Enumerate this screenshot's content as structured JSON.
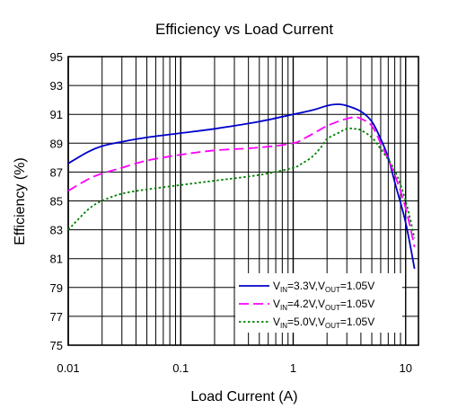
{
  "chart_data": {
    "type": "line",
    "title": "Efficiency vs Load Current",
    "xlabel": "Load Current (A)",
    "ylabel": "Efficiency (%)",
    "x_scale": "log",
    "xlim": [
      0.01,
      13
    ],
    "ylim": [
      75,
      95
    ],
    "x_ticks": [
      "0.01",
      "0.1",
      "1",
      "10"
    ],
    "y_ticks": [
      "75",
      "77",
      "79",
      "81",
      "83",
      "85",
      "87",
      "89",
      "91",
      "93",
      "95"
    ],
    "grid": true,
    "legend_position": "bottom-right",
    "series": [
      {
        "name": "VIN=3.3V,VOUT=1.05V",
        "color": "#0000cc",
        "dash": "solid",
        "legend": {
          "v1": "V",
          "sub1": "IN",
          "val1": "=3.3V,",
          "v2": "V",
          "sub2": "OUT",
          "val2": "=1.05V"
        },
        "x": [
          0.01,
          0.015,
          0.02,
          0.03,
          0.05,
          0.1,
          0.2,
          0.5,
          1.0,
          1.5,
          2.0,
          2.5,
          3.0,
          4.0,
          5.0,
          6.0,
          7.0,
          8.0,
          10.0,
          12.0
        ],
        "y": [
          87.6,
          88.4,
          88.8,
          89.1,
          89.4,
          89.7,
          90.0,
          90.5,
          91.0,
          91.3,
          91.6,
          91.7,
          91.6,
          91.2,
          90.5,
          89.3,
          88.0,
          86.3,
          83.5,
          80.3
        ]
      },
      {
        "name": "VIN=4.2V,VOUT=1.05V",
        "color": "#ff00ff",
        "dash": "dashed",
        "legend": {
          "v1": "V",
          "sub1": "IN",
          "val1": "=4.2V,",
          "v2": "V",
          "sub2": "OUT",
          "val2": "=1.05V"
        },
        "x": [
          0.01,
          0.015,
          0.02,
          0.03,
          0.05,
          0.1,
          0.2,
          0.5,
          1.0,
          1.3,
          1.7,
          2.0,
          2.5,
          3.0,
          3.5,
          4.0,
          5.0,
          6.0,
          8.0,
          10.0,
          12.0
        ],
        "y": [
          85.7,
          86.5,
          86.9,
          87.3,
          87.8,
          88.2,
          88.5,
          88.7,
          89.0,
          89.4,
          89.9,
          90.2,
          90.5,
          90.7,
          90.8,
          90.7,
          90.2,
          89.0,
          86.8,
          84.5,
          81.8
        ]
      },
      {
        "name": "VIN=5.0V,VOUT=1.05V",
        "color": "#008000",
        "dash": "dotted",
        "legend": {
          "v1": "V",
          "sub1": "IN",
          "val1": "=5.0V,",
          "v2": "V",
          "sub2": "OUT",
          "val2": "=1.05V"
        },
        "x": [
          0.01,
          0.015,
          0.02,
          0.03,
          0.05,
          0.1,
          0.2,
          0.5,
          1.0,
          1.2,
          1.5,
          1.8,
          2.0,
          2.5,
          3.0,
          3.5,
          4.0,
          5.0,
          6.0,
          8.0,
          10.0,
          12.0
        ],
        "y": [
          83.0,
          84.4,
          85.0,
          85.5,
          85.8,
          86.1,
          86.4,
          86.8,
          87.3,
          87.6,
          88.1,
          88.8,
          89.3,
          89.7,
          90.0,
          90.0,
          89.9,
          89.4,
          88.6,
          87.1,
          85.0,
          82.4
        ]
      }
    ]
  }
}
